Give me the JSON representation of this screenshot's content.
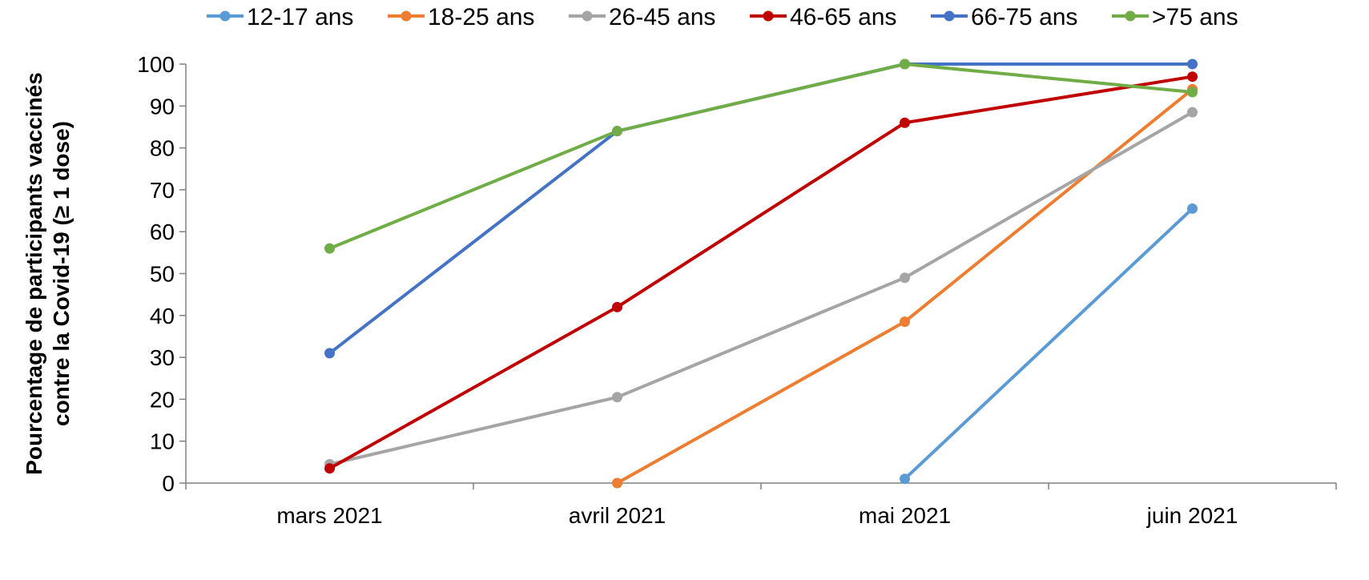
{
  "chart_data": {
    "type": "line",
    "categories": [
      "mars 2021",
      "avril 2021",
      "mai 2021",
      "juin 2021"
    ],
    "ylabel_lines": [
      "Pourcentage de participants vaccinés",
      "contre la Covid-19 (≥ 1 dose)"
    ],
    "ylim": [
      0,
      100
    ],
    "yticks": [
      0,
      10,
      20,
      30,
      40,
      50,
      60,
      70,
      80,
      90,
      100
    ],
    "grid": false,
    "legend_position": "top",
    "series": [
      {
        "name": "12-17 ans",
        "color": "#5B9BD5",
        "values": [
          null,
          null,
          1,
          65.5
        ]
      },
      {
        "name": "18-25 ans",
        "color": "#ED7D31",
        "values": [
          null,
          0,
          38.5,
          94
        ]
      },
      {
        "name": "26-45 ans",
        "color": "#A5A5A5",
        "values": [
          4.5,
          20.5,
          49,
          88.5
        ]
      },
      {
        "name": "46-65 ans",
        "color": "#C00000",
        "values": [
          3.5,
          42,
          86,
          97
        ]
      },
      {
        "name": "66-75 ans",
        "color": "#4472C4",
        "values": [
          31,
          84,
          100,
          100
        ]
      },
      {
        "name": ">75 ans",
        "color": "#70AD47",
        "values": [
          56,
          84,
          100,
          93.3
        ]
      }
    ]
  }
}
